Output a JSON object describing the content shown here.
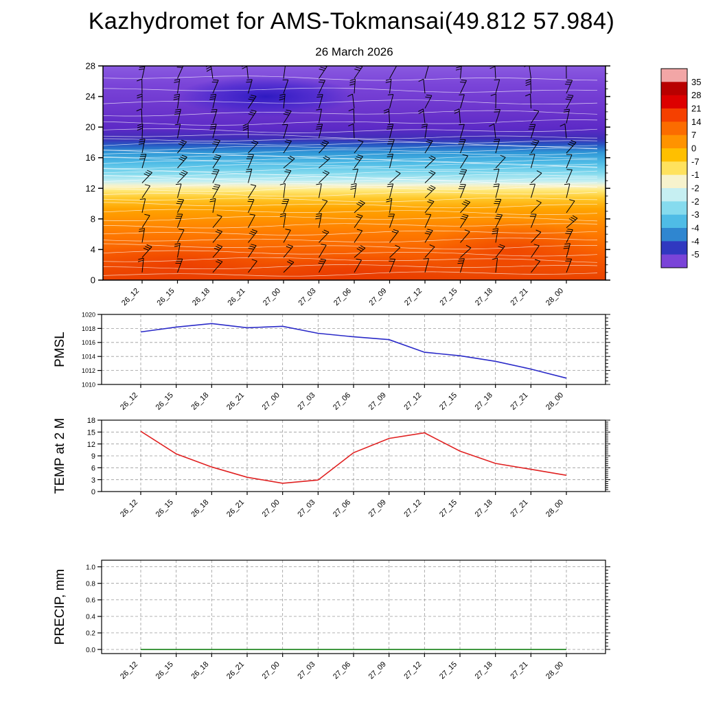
{
  "title": "Kazhydromet for AMS-Tokmansai(49.812 57.984)",
  "subtitle": "26 March 2026",
  "time_labels": [
    "26_12",
    "26_15",
    "26_18",
    "26_21",
    "27_00",
    "27_03",
    "27_06",
    "27_09",
    "27_12",
    "27_15",
    "27_18",
    "27_21",
    "28_00"
  ],
  "chart_data": [
    {
      "type": "heatmap",
      "name": "upper-air-temperature-cross-section",
      "title": "26 March 2026",
      "description": "Time-height temperature field with wind barbs and white contour lines",
      "categories": [
        "26_12",
        "26_15",
        "26_18",
        "26_21",
        "27_00",
        "27_03",
        "27_06",
        "27_09",
        "27_12",
        "27_15",
        "27_18",
        "27_21",
        "28_00"
      ],
      "ylim": [
        0,
        28
      ],
      "yticks": [
        0,
        4,
        8,
        12,
        16,
        20,
        24,
        28
      ],
      "wind_barbs": true,
      "contour_lines": true,
      "cold_core": {
        "time": "27_00",
        "height_km": 24
      },
      "field_gradient": [
        {
          "km": 28,
          "color": "#8a5ae0"
        },
        {
          "km": 25.5,
          "color": "#7a44d8"
        },
        {
          "km": 22,
          "color": "#6b34cc"
        },
        {
          "km": 19.8,
          "color": "#5c2ac6"
        },
        {
          "km": 18.5,
          "color": "#3f2eb8"
        },
        {
          "km": 17.7,
          "color": "#2756c2"
        },
        {
          "km": 16.7,
          "color": "#2f96d6"
        },
        {
          "km": 15.3,
          "color": "#4fbce6"
        },
        {
          "km": 13.9,
          "color": "#86dbee"
        },
        {
          "km": 12.9,
          "color": "#c6eff2"
        },
        {
          "km": 12.35,
          "color": "#f7f3cd"
        },
        {
          "km": 11.7,
          "color": "#ffe878"
        },
        {
          "km": 10.7,
          "color": "#ffc82a"
        },
        {
          "km": 9.3,
          "color": "#ffa400"
        },
        {
          "km": 6.5,
          "color": "#ff7f00"
        },
        {
          "km": 3.5,
          "color": "#f85f00"
        },
        {
          "km": 0,
          "color": "#e94200"
        }
      ],
      "colorbar": {
        "position": "right",
        "labels": [
          "35",
          "28",
          "21",
          "14",
          "7",
          "0",
          "-7",
          "-1",
          "-2",
          "-2",
          "-3",
          "-4",
          "-4",
          "-5"
        ],
        "colors": [
          "#f2a6a6",
          "#b80000",
          "#dd0000",
          "#f54000",
          "#fb6c00",
          "#ff9300",
          "#ffbf00",
          "#ffe25e",
          "#f7f3cd",
          "#c6eff2",
          "#86dbee",
          "#4fbce6",
          "#2f86d0",
          "#3038c0",
          "#7a44d8"
        ]
      }
    },
    {
      "type": "line",
      "name": "pmsl",
      "ylabel": "PMSL",
      "color": "#2929c8",
      "ylim": [
        1010,
        1020
      ],
      "yticks": [
        1010,
        1012,
        1014,
        1016,
        1018,
        1020
      ],
      "grid": true,
      "categories": [
        "26_12",
        "26_15",
        "26_18",
        "26_21",
        "27_00",
        "27_03",
        "27_06",
        "27_09",
        "27_12",
        "27_15",
        "27_18",
        "27_21",
        "28_00"
      ],
      "values": [
        1017.5,
        1018.2,
        1018.7,
        1018.1,
        1018.3,
        1017.3,
        1016.8,
        1016.4,
        1014.6,
        1014.1,
        1013.3,
        1012.2,
        1010.9
      ]
    },
    {
      "type": "line",
      "name": "temp-at-2m",
      "ylabel": "TEMP at 2 M",
      "color": "#e02020",
      "ylim": [
        0,
        18
      ],
      "yticks": [
        0,
        3,
        6,
        9,
        12,
        15,
        18
      ],
      "grid": true,
      "categories": [
        "26_12",
        "26_15",
        "26_18",
        "26_21",
        "27_00",
        "27_03",
        "27_06",
        "27_09",
        "27_12",
        "27_15",
        "27_18",
        "27_21",
        "28_00"
      ],
      "values": [
        15.2,
        9.5,
        6.2,
        3.6,
        2.1,
        2.9,
        9.8,
        13.4,
        14.8,
        10.2,
        7.1,
        5.6,
        4.1
      ]
    },
    {
      "type": "line",
      "name": "precip",
      "ylabel": "PRECIP, mm",
      "color": "#007700",
      "ylim": [
        0,
        1
      ],
      "yticks": [
        "0.0",
        "0.2",
        "0.4",
        "0.6",
        "0.8",
        "1.0"
      ],
      "grid": true,
      "categories": [
        "26_12",
        "26_15",
        "26_18",
        "26_21",
        "27_00",
        "27_03",
        "27_06",
        "27_09",
        "27_12",
        "27_15",
        "27_18",
        "27_21",
        "28_00"
      ],
      "values": [
        0,
        0,
        0,
        0,
        0,
        0,
        0,
        0,
        0,
        0,
        0,
        0,
        0
      ]
    }
  ]
}
